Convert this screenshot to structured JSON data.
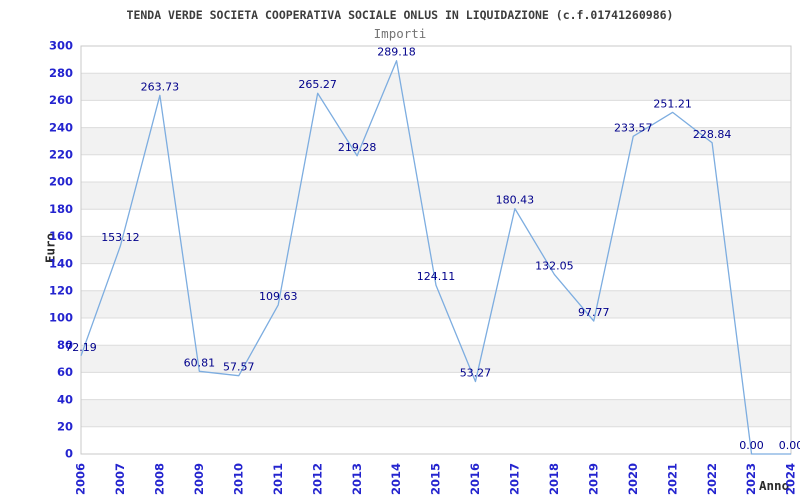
{
  "chart_data": {
    "type": "line",
    "title": "TENDA VERDE SOCIETA COOPERATIVA SOCIALE ONLUS IN LIQUIDAZIONE (c.f.01741260986)",
    "subtitle": "Importi",
    "xlabel": "Anno",
    "ylabel": "Euro",
    "categories": [
      "2006",
      "2007",
      "2008",
      "2009",
      "2010",
      "2011",
      "2012",
      "2013",
      "2014",
      "2015",
      "2016",
      "2017",
      "2018",
      "2019",
      "2020",
      "2021",
      "2022",
      "2023",
      "2024"
    ],
    "values": [
      72.19,
      153.12,
      263.73,
      60.81,
      57.57,
      109.63,
      265.27,
      219.28,
      289.18,
      124.11,
      53.27,
      180.43,
      132.05,
      97.77,
      233.57,
      251.21,
      228.84,
      0.0,
      0.0
    ],
    "point_labels": [
      "72.19",
      "153.12",
      "263.73",
      "60.81",
      "57.57",
      "109.63",
      "265.27",
      "219.28",
      "289.18",
      "124.11",
      "53.27",
      "180.43",
      "132.05",
      "97.77",
      "233.57",
      "251.21",
      "228.84",
      "0.00",
      "0.00"
    ],
    "ylim": [
      0,
      300
    ],
    "ytick_step": 20,
    "yticks": [
      0,
      20,
      40,
      60,
      80,
      100,
      120,
      140,
      160,
      180,
      200,
      220,
      240,
      260,
      280,
      300
    ],
    "grid": true,
    "legend": "none",
    "plot_bands_alternating": true,
    "colors": {
      "line": "#7dade0",
      "point_label": "#00008b",
      "tick_label": "#2424cf",
      "title": "#3d3d3d",
      "subtitle": "#757575",
      "axis_title": "#2b2b2b",
      "band": "#f2f2f2",
      "grid": "#dcdcdc",
      "border": "#c9c9c9",
      "background": "#ffffff"
    }
  }
}
